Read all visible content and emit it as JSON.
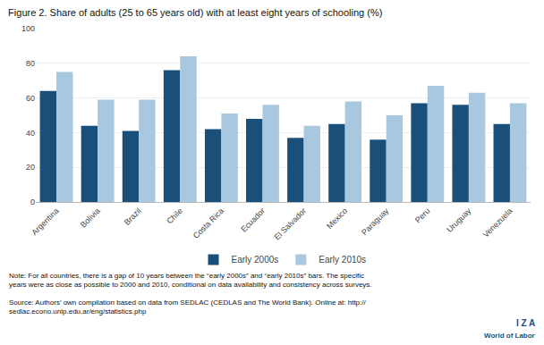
{
  "chart_data": {
    "type": "bar",
    "title": "Figure 2. Share of adults (25 to 65 years old) with at least eight years of schooling (%)",
    "categories": [
      "Argentina",
      "Bolivia",
      "Brazil",
      "Chile",
      "Costa Rica",
      "Ecuador",
      "El Salvador",
      "Mexico",
      "Paraguay",
      "Peru",
      "Uruguay",
      "Venezuela"
    ],
    "series": [
      {
        "name": "Early 2000s",
        "color": "#1a4f7a",
        "values": [
          64,
          44,
          41,
          76,
          42,
          48,
          37,
          45,
          36,
          57,
          56,
          45
        ]
      },
      {
        "name": "Early 2010s",
        "color": "#a8c8e0",
        "values": [
          75,
          59,
          59,
          84,
          51,
          56,
          44,
          58,
          50,
          67,
          63,
          57
        ]
      }
    ],
    "ylim": [
      0,
      100
    ],
    "yticks": [
      0,
      20,
      40,
      60,
      80,
      100
    ],
    "grid": true,
    "legend": "bottom",
    "annotations": [
      "Note: For all countries, there is a gap of 10 years between the “early 2000s” and “early 2010s” bars. The specific\nyears were as close as possible to 2000 and 2010, conditional on data availability and consistency across surveys.",
      "Source: Authors’ own compilation based on data from SEDLAC (CEDLAS and The World Bank). Online at: http://\nsedlac.econo.unlp.edu.ar/eng/statistics.php",
      "I Z A",
      "World of Labor"
    ]
  }
}
